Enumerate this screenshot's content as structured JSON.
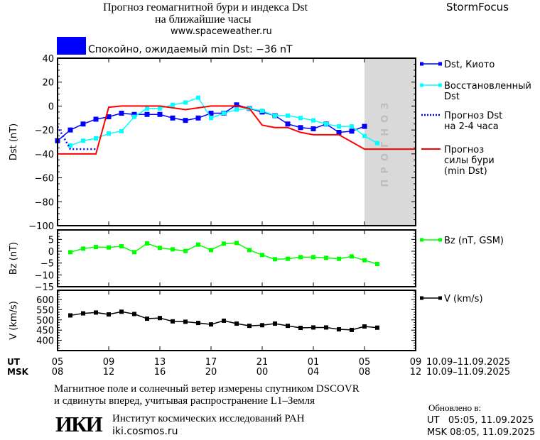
{
  "header": {
    "title_line1": "Прогноз геомагнитной бури и индекса Dst",
    "title_line2": "на ближайшие часы",
    "website": "www.spaceweather.ru",
    "brand": "StormFocus"
  },
  "status": {
    "color": "#0000ff",
    "text": "Спокойно, ожидаемый min Dst: −36 nT"
  },
  "forecast_zone_label": "ПРОГНОЗ",
  "time_axis": {
    "ut_label": "UT",
    "msk_label": "MSK",
    "ut_ticks": [
      "05",
      "09",
      "13",
      "17",
      "21",
      "01",
      "05",
      "09"
    ],
    "msk_ticks": [
      "08",
      "12",
      "16",
      "20",
      "00",
      "04",
      "08",
      "12"
    ],
    "date_range_ut": "10.09–11.09.2025",
    "date_range_msk": "10.09–11.09.2025"
  },
  "chart_data": [
    {
      "type": "line",
      "ylabel": "Dst (nT)",
      "xlim_ut": [
        "05:00",
        "09:00"
      ],
      "ylim": [
        -100,
        40
      ],
      "yticks": [
        40,
        20,
        0,
        -20,
        -40,
        -60,
        -80,
        -100
      ],
      "forecast_from_ut": "05:00",
      "series": [
        {
          "name": "Dst, Киото",
          "color": "#0000ff",
          "style": "line-markers-large",
          "x": [
            "05:00",
            "06:00",
            "07:00",
            "08:00",
            "09:00",
            "10:00",
            "11:00",
            "12:00",
            "13:00",
            "14:00",
            "15:00",
            "16:00",
            "17:00",
            "18:00",
            "19:00",
            "20:00",
            "21:00",
            "22:00",
            "23:00",
            "00:00",
            "01:00",
            "02:00",
            "03:00",
            "04:00",
            "05:00"
          ],
          "y": [
            -29,
            -20,
            -15,
            -11,
            -9,
            -6,
            -7,
            -7,
            -7,
            -10,
            -12,
            -10,
            -6,
            -6,
            1,
            -2,
            -5,
            -8,
            -15,
            -18,
            -19,
            -15,
            -22,
            -21,
            -17
          ]
        },
        {
          "name": "Восстановленный Dst",
          "color": "#00ffff",
          "style": "line-markers",
          "x": [
            "06:00",
            "07:00",
            "08:00",
            "09:00",
            "10:00",
            "11:00",
            "12:00",
            "13:00",
            "14:00",
            "15:00",
            "16:00",
            "17:00",
            "18:00",
            "19:00",
            "20:00",
            "21:00",
            "22:00",
            "23:00",
            "00:00",
            "01:00",
            "02:00",
            "03:00",
            "04:00",
            "05:00",
            "06:00"
          ],
          "y": [
            -33,
            -29,
            -27,
            -23,
            -21,
            -9,
            -2,
            -2,
            1,
            3,
            7,
            -10,
            -6,
            -3,
            -2,
            -4,
            -8,
            -8,
            -10,
            -12,
            -15,
            -17,
            -17,
            -25,
            -31
          ]
        },
        {
          "name": "Прогноз Dst на 2-4 часа",
          "color": "#0000ff",
          "style": "dotted",
          "x": [
            "05:00",
            "06:00",
            "08:00"
          ],
          "y": [
            -17,
            -36,
            -36
          ]
        },
        {
          "name": "Прогноз силы бури (min Dst)",
          "color": "#ff0000",
          "style": "line",
          "x": [
            "05:00",
            "08:00",
            "09:00",
            "10:00",
            "13:00",
            "15:00",
            "17:00",
            "19:00",
            "20:00",
            "21:00",
            "22:00",
            "23:00",
            "00:00",
            "01:00",
            "03:00",
            "05:00",
            "09:00"
          ],
          "y": [
            -40,
            -40,
            -1,
            0,
            0,
            -3,
            0,
            0,
            -2,
            -16,
            -18,
            -18,
            -22,
            -24,
            -24,
            -36,
            -36
          ]
        }
      ],
      "legend": [
        {
          "lines": [
            "Dst, Киото"
          ]
        },
        {
          "lines": [
            "Восстановленный",
            "Dst"
          ]
        },
        {
          "lines": [
            "Прогноз Dst",
            "на 2-4 часа"
          ]
        },
        {
          "lines": [
            "Прогноз",
            "силы бури",
            "(min Dst)"
          ]
        }
      ]
    },
    {
      "type": "line",
      "ylabel": "Bz (nT)",
      "ylim": [
        -15,
        9
      ],
      "yticks": [
        5,
        0,
        -5,
        -10,
        -15
      ],
      "series": [
        {
          "name": "Bz (nT, GSM)",
          "color": "#00ff00",
          "x": [
            "06:00",
            "07:00",
            "08:00",
            "09:00",
            "10:00",
            "11:00",
            "12:00",
            "13:00",
            "14:00",
            "15:00",
            "16:00",
            "17:00",
            "18:00",
            "19:00",
            "20:00",
            "21:00",
            "22:00",
            "23:00",
            "00:00",
            "01:00",
            "02:00",
            "03:00",
            "04:00",
            "05:00",
            "06:00"
          ],
          "y": [
            -0.4,
            1.1,
            1.8,
            1.6,
            2.1,
            -0.4,
            3.3,
            1.4,
            0.8,
            0.1,
            2.8,
            0.5,
            3.2,
            3.5,
            0.5,
            -1.6,
            -3.4,
            -3.2,
            -2.5,
            -2.5,
            -2.8,
            -3.2,
            -2.2,
            -3.8,
            -5.4
          ]
        }
      ],
      "legend": [
        {
          "lines": [
            "Bz (nT, GSM)"
          ]
        }
      ]
    },
    {
      "type": "line",
      "ylabel": "V (km/s)",
      "ylim": [
        350,
        645
      ],
      "yticks": [
        600,
        550,
        500,
        450,
        400
      ],
      "series": [
        {
          "name": "V (km/s)",
          "color": "#000000",
          "x": [
            "06:00",
            "07:00",
            "08:00",
            "09:00",
            "10:00",
            "11:00",
            "12:00",
            "13:00",
            "14:00",
            "15:00",
            "16:00",
            "17:00",
            "18:00",
            "19:00",
            "20:00",
            "21:00",
            "22:00",
            "23:00",
            "00:00",
            "01:00",
            "02:00",
            "03:00",
            "04:00",
            "05:00",
            "06:00"
          ],
          "y": [
            522,
            532,
            536,
            527,
            540,
            529,
            506,
            509,
            493,
            491,
            485,
            478,
            496,
            482,
            471,
            474,
            482,
            471,
            461,
            463,
            463,
            454,
            451,
            468,
            462
          ]
        }
      ],
      "legend": [
        {
          "lines": [
            "V (km/s)"
          ]
        }
      ]
    }
  ],
  "footer": {
    "note_line1": "Магнитное поле и солнечный ветер измерены спутником DSCOVR",
    "note_line2": "и сдвинуты вперед, учитывая распространение L1–Земля",
    "logo_text": "ИКИ",
    "institute": "Институт космических исследований РАН",
    "institute_site": "iki.cosmos.ru",
    "updated_label": "Обновлено в:",
    "updated_ut": "UT   05:05, 11.09.2025",
    "updated_msk": "MSK 08:05, 11.09.2025"
  }
}
